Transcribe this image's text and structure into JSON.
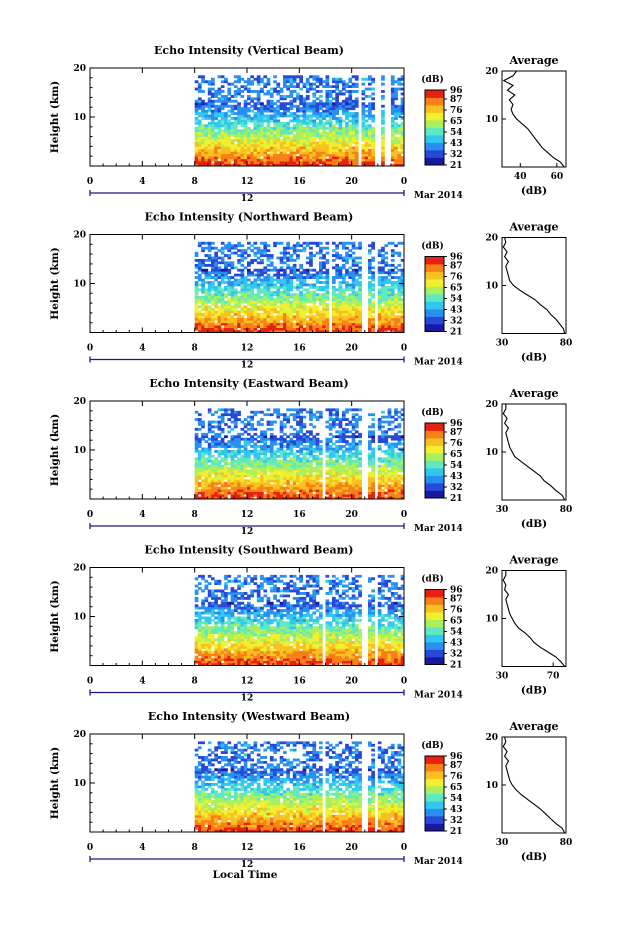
{
  "figure": {
    "date_label": "Mar 2014",
    "xlabel": "Local Time",
    "unit_label": "(dB)",
    "avg_title": "Average",
    "avg_xlabel": "(dB)",
    "ylabel": "Height (km)",
    "time_marker": "12"
  },
  "colors": {
    "palette": [
      "#1818a0",
      "#2848d8",
      "#2890f0",
      "#30c8f0",
      "#60e8c0",
      "#a8f060",
      "#f0f030",
      "#f8c020",
      "#f88018",
      "#e82010"
    ],
    "missing": "#ffffff"
  },
  "chart_data": [
    {
      "type": "heatmap",
      "title": "Echo Intensity (Vertical Beam)",
      "ylabel": "Height (km)",
      "x_ticks": [
        "0",
        "4",
        "8",
        "12",
        "16",
        "20",
        "0"
      ],
      "x_range_hours": [
        0,
        24
      ],
      "y_ticks": [
        "20",
        "10"
      ],
      "y_range_km": [
        0,
        20
      ],
      "data_start_hour": 8,
      "gap_hours": [
        [
          20.4,
          20.8
        ],
        [
          21.8,
          22.2
        ],
        [
          22.6,
          23.0
        ]
      ],
      "colorbar_ticks": [
        "96",
        "87",
        "76",
        "65",
        "54",
        "43",
        "32",
        "21"
      ],
      "colorbar_range_db": [
        21,
        96
      ],
      "average_profile": {
        "xlim": [
          30,
          65
        ],
        "x_ticks": [
          "40",
          "60"
        ],
        "y_ticks": [
          "20",
          "10"
        ],
        "height_km": [
          0,
          1,
          2,
          3,
          4,
          5,
          6,
          7,
          8,
          9,
          10,
          11,
          12,
          13,
          14,
          15,
          16,
          17,
          18,
          19,
          20
        ],
        "db": [
          64,
          62,
          58,
          55,
          52,
          50,
          48,
          46,
          44,
          41,
          38,
          36,
          35,
          36,
          34,
          37,
          33,
          36,
          31,
          36,
          38
        ]
      }
    },
    {
      "type": "heatmap",
      "title": "Echo Intensity (Northward Beam)",
      "ylabel": "Height (km)",
      "x_ticks": [
        "0",
        "4",
        "8",
        "12",
        "16",
        "20",
        "0"
      ],
      "x_range_hours": [
        0,
        24
      ],
      "y_ticks": [
        "20",
        "10"
      ],
      "y_range_km": [
        0,
        20
      ],
      "data_start_hour": 8,
      "gap_hours": [
        [
          18.2,
          18.5
        ],
        [
          20.8,
          21.2
        ],
        [
          21.7,
          22.1
        ]
      ],
      "colorbar_ticks": [
        "96",
        "87",
        "76",
        "65",
        "54",
        "43",
        "32",
        "21"
      ],
      "colorbar_range_db": [
        21,
        96
      ],
      "average_profile": {
        "xlim": [
          30,
          80
        ],
        "x_ticks": [
          "30",
          "80"
        ],
        "y_ticks": [
          "20",
          "10"
        ],
        "height_km": [
          0,
          1,
          2,
          3,
          4,
          5,
          6,
          7,
          8,
          9,
          10,
          11,
          12,
          13,
          14,
          15,
          16,
          17,
          18,
          19,
          20
        ],
        "db": [
          79,
          78,
          75,
          72,
          68,
          65,
          60,
          56,
          50,
          44,
          39,
          36,
          35,
          34,
          33,
          35,
          32,
          34,
          31,
          33,
          32
        ]
      }
    },
    {
      "type": "heatmap",
      "title": "Echo Intensity (Eastward Beam)",
      "ylabel": "Height (km)",
      "x_ticks": [
        "0",
        "4",
        "8",
        "12",
        "16",
        "20",
        "0"
      ],
      "x_range_hours": [
        0,
        24
      ],
      "y_ticks": [
        "20",
        "10"
      ],
      "y_range_km": [
        0,
        20
      ],
      "data_start_hour": 8,
      "gap_hours": [
        [
          17.8,
          18.1
        ],
        [
          20.8,
          21.2
        ],
        [
          21.7,
          22.1
        ]
      ],
      "colorbar_ticks": [
        "96",
        "87",
        "76",
        "65",
        "54",
        "43",
        "32",
        "21"
      ],
      "colorbar_range_db": [
        21,
        96
      ],
      "average_profile": {
        "xlim": [
          30,
          80
        ],
        "x_ticks": [
          "30",
          "80"
        ],
        "y_ticks": [
          "20",
          "10"
        ],
        "height_km": [
          0,
          1,
          2,
          3,
          4,
          5,
          6,
          7,
          8,
          9,
          10,
          11,
          12,
          13,
          14,
          15,
          16,
          17,
          18,
          19,
          20
        ],
        "db": [
          79,
          77,
          72,
          68,
          63,
          60,
          55,
          50,
          45,
          40,
          38,
          36,
          35,
          34,
          33,
          35,
          32,
          34,
          31,
          33,
          33
        ]
      }
    },
    {
      "type": "heatmap",
      "title": "Echo Intensity (Southward Beam)",
      "ylabel": "Height (km)",
      "x_ticks": [
        "0",
        "4",
        "8",
        "12",
        "16",
        "20",
        "0"
      ],
      "x_range_hours": [
        0,
        24
      ],
      "y_ticks": [
        "20",
        "10"
      ],
      "y_range_km": [
        0,
        20
      ],
      "data_start_hour": 8,
      "gap_hours": [
        [
          17.8,
          18.1
        ],
        [
          20.8,
          21.2
        ],
        [
          21.7,
          22.1
        ]
      ],
      "colorbar_ticks": [
        "96",
        "87",
        "76",
        "65",
        "54",
        "43",
        "32",
        "21"
      ],
      "colorbar_range_db": [
        21,
        96
      ],
      "average_profile": {
        "xlim": [
          30,
          80
        ],
        "x_ticks": [
          "30",
          "70"
        ],
        "y_ticks": [
          "20",
          "10"
        ],
        "height_km": [
          0,
          1,
          2,
          3,
          4,
          5,
          6,
          7,
          8,
          9,
          10,
          11,
          12,
          13,
          14,
          15,
          16,
          17,
          18,
          19,
          20
        ],
        "db": [
          79,
          76,
          72,
          66,
          60,
          55,
          52,
          48,
          43,
          40,
          38,
          36,
          35,
          34,
          33,
          35,
          32,
          33,
          31,
          33,
          33
        ]
      }
    },
    {
      "type": "heatmap",
      "title": "Echo Intensity (Westward Beam)",
      "ylabel": "Height (km)",
      "x_ticks": [
        "0",
        "4",
        "8",
        "12",
        "16",
        "20",
        "0"
      ],
      "x_range_hours": [
        0,
        24
      ],
      "y_ticks": [
        "20",
        "10"
      ],
      "y_range_km": [
        0,
        20
      ],
      "data_start_hour": 8,
      "gap_hours": [
        [
          17.8,
          18.1
        ],
        [
          20.8,
          21.2
        ],
        [
          21.7,
          22.1
        ]
      ],
      "colorbar_ticks": [
        "96",
        "87",
        "76",
        "65",
        "54",
        "43",
        "32",
        "21"
      ],
      "colorbar_range_db": [
        21,
        96
      ],
      "average_profile": {
        "xlim": [
          30,
          80
        ],
        "x_ticks": [
          "30",
          "80"
        ],
        "y_ticks": [
          "20",
          "10"
        ],
        "height_km": [
          0,
          1,
          2,
          3,
          4,
          5,
          6,
          7,
          8,
          9,
          10,
          11,
          12,
          13,
          14,
          15,
          16,
          17,
          18,
          19,
          20
        ],
        "db": [
          79,
          77,
          72,
          68,
          64,
          60,
          55,
          50,
          45,
          41,
          38,
          36,
          35,
          34,
          33,
          35,
          32,
          34,
          31,
          33,
          32
        ]
      }
    }
  ]
}
